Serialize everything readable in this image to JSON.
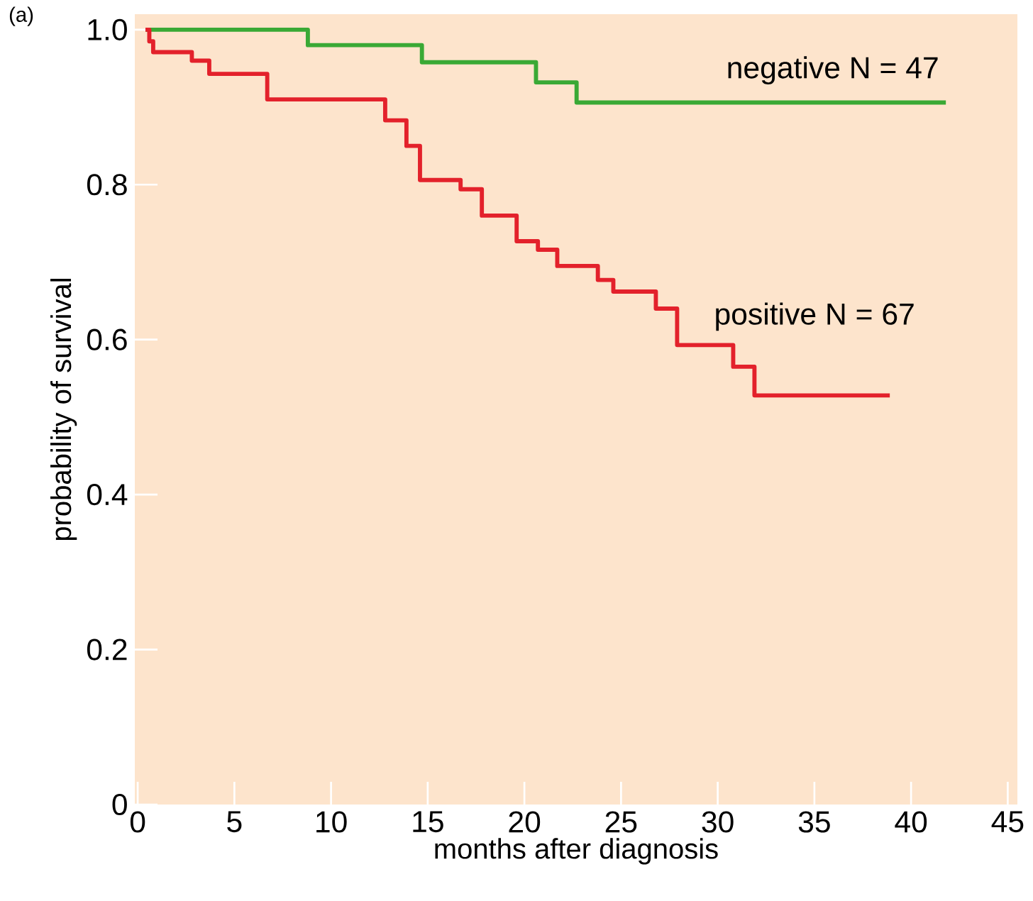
{
  "chart_data": {
    "type": "step",
    "xlabel": "months after diagnosis",
    "ylabel": "probability of survival",
    "annotations": [
      "(a)"
    ],
    "series": [
      {
        "name": "negative N = 47",
        "color": "#3aa935",
        "x": [
          0.4,
          8.8,
          14.7,
          20.6,
          22.7,
          41.8
        ],
        "values": [
          1.0,
          0.98,
          0.958,
          0.932,
          0.906,
          0.906
        ]
      },
      {
        "name": "positive N = 67",
        "color": "#e3212b",
        "x": [
          0.4,
          0.6,
          0.8,
          2.8,
          3.7,
          6.7,
          12.8,
          13.9,
          14.6,
          16.7,
          17.8,
          19.6,
          20.7,
          21.7,
          23.8,
          24.6,
          26.8,
          27.9,
          30.8,
          31.9,
          38.9
        ],
        "values": [
          1.0,
          0.985,
          0.971,
          0.96,
          0.943,
          0.91,
          0.883,
          0.85,
          0.806,
          0.794,
          0.76,
          0.727,
          0.716,
          0.695,
          0.677,
          0.662,
          0.64,
          0.593,
          0.565,
          0.528,
          0.528
        ]
      }
    ],
    "xlim": [
      -0.15,
      45.5
    ],
    "ylim": [
      0,
      1.02
    ],
    "xticks": [
      0,
      5,
      10,
      15,
      20,
      25,
      30,
      35,
      40,
      45
    ],
    "yticks": [
      0,
      0.2,
      0.4,
      0.6,
      0.8,
      {
        "value": 1.0,
        "label": "1.0"
      }
    ]
  }
}
